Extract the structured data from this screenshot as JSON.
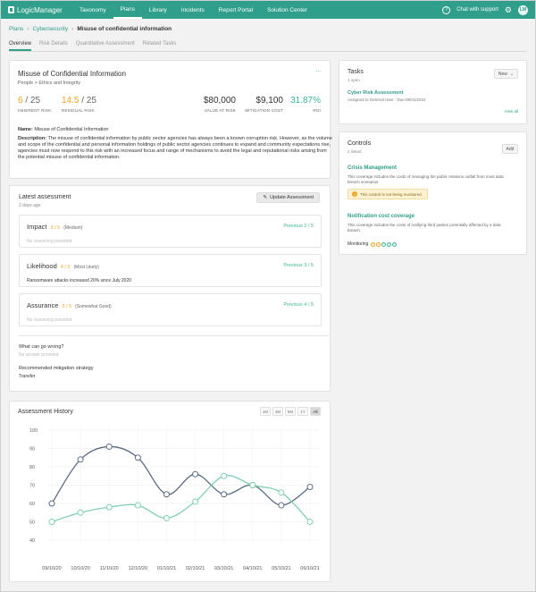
{
  "nav": {
    "brand": "LogicManager",
    "items": [
      "Taxonomy",
      "Plans",
      "Library",
      "Incidents",
      "Report Portal",
      "Solution Center"
    ],
    "active_index": 1,
    "help": "?",
    "chat_support": "Chat with support",
    "avatar": "LM"
  },
  "breadcrumb": {
    "items": [
      "Plans",
      "Cybersecurity"
    ],
    "current": "Misuse of confidential information"
  },
  "tabs": {
    "items": [
      "Overview",
      "Risk Details",
      "Quantitative Assessment",
      "Related Tasks"
    ],
    "active_index": 0
  },
  "risk": {
    "title": "Misuse of Confidential Information",
    "subtitle": "People > Ethics and Integrity",
    "more": "…",
    "inherent": {
      "num": "6",
      "den": " / 25",
      "label": "INHERENT RISK"
    },
    "residual": {
      "num": "14.5",
      "den": " / 25",
      "label": "RESIDUAL RISK"
    },
    "value_at_risk": {
      "value": "$80,000",
      "label": "VALUE AT RISK"
    },
    "mitigation_cost": {
      "value": "$9,100",
      "label": "MITIGATION COST"
    },
    "roi": {
      "value": "31.87%",
      "label": "ROI"
    },
    "name_label": "Name:",
    "name_value": " Misuse of Confidential Information",
    "desc_label": "Description:",
    "desc_value": " The misuse of confidential information by public sector agencies has always been a known corruption risk. However, as the volume and scope of the confidential and personal information holdings of public sector agencies continues to expand and community expectations rise, agencies must now respond to this risk with an increased focus and range of mechanisms to avoid the legal and reputational risks arising from the potential misuse of confidential information."
  },
  "assessment": {
    "title": "Latest assessment",
    "date": "2 days ago",
    "update_label": "Update Assessment",
    "items": [
      {
        "name": "Impact",
        "score": "3 / 5",
        "desc": "(Medium)",
        "previous": "Previous 2 / 5",
        "note": "No reasoning provided."
      },
      {
        "name": "Likelihood",
        "score": "4 / 5",
        "desc": "(Most Likely)",
        "previous": "Previous 3 / 5",
        "note": "Ransomware attacks increased 20% since July 2020"
      },
      {
        "name": "Assurance",
        "score": "3 / 5",
        "desc": "(Somewhat Good)",
        "previous": "Previous 4 / 5",
        "note": "No reasoning provided."
      }
    ],
    "what_can_go_wrong_q": "What can go wrong?",
    "what_can_go_wrong_a": "No answer provided.",
    "mitigation_q": "Recommended mitigation strategy",
    "mitigation_a": "Transfer"
  },
  "tasks": {
    "title": "Tasks",
    "count": "1 open",
    "new_label": "New",
    "task_title": "Cyber Risk Assessment",
    "task_meta": "Assigned to General User · Due 08/31/2022",
    "view_all": "View all"
  },
  "controls": {
    "title": "Controls",
    "count": "2 linked",
    "add_label": "Add",
    "items": [
      {
        "title": "Crisis Management",
        "text": "This coverage includes the costs of managing the public relations outfall from most data breach scenarios."
      },
      {
        "title": "Notification cost coverage",
        "text": "This coverage includes the costs of notifying third parties potentially affected by a data breach."
      }
    ],
    "warning": "This control is not being monitored",
    "monitoring_label": "Monitoring"
  },
  "chart_data": {
    "type": "line",
    "title": "Assessment History",
    "ranges": [
      "1M",
      "3M",
      "6M",
      "1Y",
      "All"
    ],
    "active_range": "All",
    "x": [
      "09/10/20",
      "10/10/20",
      "11/10/20",
      "12/10/20",
      "01/10/21",
      "02/10/21",
      "03/10/21",
      "04/10/21",
      "05/10/21",
      "06/10/21"
    ],
    "yticks": [
      40,
      50,
      60,
      70,
      80,
      90,
      100
    ],
    "ylim": [
      40,
      100
    ],
    "series": [
      {
        "color": "#5a6b85",
        "values": [
          60,
          84,
          91,
          85,
          65,
          76,
          65,
          70,
          59,
          69
        ]
      },
      {
        "color": "#7fd0b2",
        "values": [
          50,
          55,
          58,
          59,
          52,
          61,
          75,
          70,
          66,
          50
        ]
      }
    ]
  }
}
